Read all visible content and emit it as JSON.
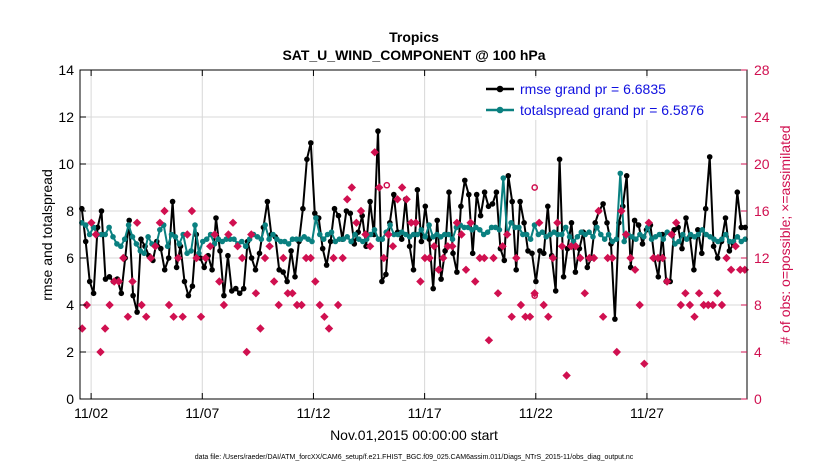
{
  "chart_data": {
    "type": "line",
    "title": "Tropics",
    "subtitle": "SAT_U_WIND_COMPONENT @ 100 hPa",
    "xlabel": "Nov.01,2015 00:00:00 start",
    "ylabel": "rmse and totalspread",
    "y2label": "# of obs: o=possible; ×=assimilated",
    "xlim": [
      0.5,
      30.5
    ],
    "ylim": [
      0,
      14
    ],
    "y2lim": [
      0,
      28
    ],
    "xticks": [
      1,
      6,
      11,
      16,
      21,
      26
    ],
    "xtick_labels": [
      "11/02",
      "11/07",
      "11/12",
      "11/17",
      "11/22",
      "11/27"
    ],
    "yticks": [
      0,
      2,
      4,
      6,
      8,
      10,
      12,
      14
    ],
    "ytick_labels": [
      "0",
      "2",
      "4",
      "6",
      "8",
      "10",
      "12",
      "14"
    ],
    "y2ticks": [
      0,
      4,
      8,
      12,
      16,
      20,
      24,
      28
    ],
    "y2tick_labels": [
      "0",
      "4",
      "8",
      "12",
      "16",
      "20",
      "24",
      "28"
    ],
    "series": [
      {
        "name": "rmse grand pr = 6.6835",
        "color": "#000000",
        "values": [
          8.1,
          6.7,
          5.0,
          4.5,
          7.3,
          8.0,
          5.1,
          5.2,
          5.0,
          5.1,
          4.5,
          6.0,
          7.6,
          4.4,
          3.7,
          6.8,
          6.5,
          6.1,
          5.9,
          6.7,
          6.4,
          5.5,
          6.0,
          8.4,
          5.6,
          6.5,
          5.0,
          4.4,
          4.8,
          7.0,
          6.0,
          5.6,
          6.1,
          5.5,
          7.7,
          6.3,
          4.4,
          6.1,
          4.6,
          4.7,
          4.5,
          4.7,
          6.7,
          6.0,
          5.5,
          6.2,
          7.3,
          8.4,
          7.0,
          6.9,
          5.5,
          5.4,
          5.0,
          6.3,
          5.2,
          6.7,
          8.1,
          10.2,
          10.9,
          7.9,
          7.7,
          6.4,
          5.7,
          6.7,
          8.1,
          7.8,
          6.8,
          8.0,
          7.9,
          6.6,
          7.1,
          7.8,
          6.5,
          8.4,
          7.0,
          11.4,
          5.0,
          5.3,
          7.5,
          8.7,
          7.1,
          6.8,
          8.5,
          6.5,
          5.5,
          8.9,
          6.7,
          8.2,
          6.8,
          4.7,
          7.6,
          5.1,
          6.3,
          8.8,
          6.2,
          5.4,
          8.2,
          9.3,
          8.7,
          6.2,
          8.7,
          7.8,
          8.8,
          8.2,
          8.3,
          8.8,
          6.4,
          5.9,
          9.5,
          8.4,
          5.5,
          8.4,
          7.5,
          6.3,
          6.2,
          5.0,
          6.3,
          6.2,
          8.2,
          6.1,
          4.6,
          10.2,
          5.2,
          6.4,
          7.5,
          5.4,
          6.4,
          7.1,
          5.6,
          6.0,
          7.5,
          8.0,
          8.3,
          7.5,
          6.6,
          3.4,
          7.5,
          8.2,
          9.5,
          5.6,
          7.6,
          7.4,
          6.6,
          7.2,
          7.4,
          6.0,
          5.2,
          7.0,
          5.0,
          5.0,
          7.2,
          7.3,
          6.4,
          7.7,
          6.9,
          5.5,
          7.2,
          6.2,
          8.1,
          10.3,
          6.5,
          6.0,
          6.7,
          7.7,
          6.3,
          6.6,
          8.8,
          7.3,
          7.3
        ]
      },
      {
        "name": "totalspread grand pr = 6.5876",
        "color": "#0a8080",
        "values": [
          7.5,
          7.4,
          7.0,
          7.3,
          7.0,
          7.0,
          7.0,
          7.3,
          6.9,
          6.6,
          6.5,
          6.8,
          7.4,
          6.9,
          6.6,
          6.3,
          6.2,
          6.9,
          6.6,
          6.5,
          7.2,
          7.4,
          6.5,
          7.0,
          6.9,
          6.6,
          7.0,
          6.2,
          6.3,
          7.4,
          6.2,
          6.7,
          6.8,
          7.0,
          6.6,
          6.8,
          6.7,
          6.8,
          6.8,
          6.8,
          6.6,
          6.7,
          6.5,
          6.8,
          7.0,
          6.9,
          6.8,
          7.4,
          6.8,
          7.0,
          6.8,
          6.7,
          6.7,
          6.6,
          6.8,
          6.8,
          6.8,
          6.9,
          6.8,
          6.7,
          7.7,
          7.0,
          6.8,
          7.0,
          7.1,
          6.7,
          6.8,
          6.8,
          6.9,
          6.7,
          7.0,
          6.8,
          6.7,
          6.8,
          7.0,
          7.2,
          6.8,
          6.8,
          7.1,
          7.4,
          7.0,
          7.0,
          7.1,
          7.0,
          6.9,
          7.0,
          7.0,
          7.2,
          6.9,
          7.4,
          6.9,
          7.0,
          6.9,
          7.0,
          7.0,
          6.8,
          7.3,
          7.4,
          7.3,
          7.3,
          7.2,
          7.3,
          7.2,
          7.0,
          7.1,
          7.3,
          7.3,
          7.2,
          9.4,
          7.0,
          7.5,
          7.3,
          7.3,
          7.0,
          7.0,
          6.8,
          7.4,
          7.0,
          7.1,
          6.9,
          7.0,
          7.1,
          7.0,
          7.0,
          7.3,
          6.9,
          6.7,
          6.9,
          7.1,
          7.0,
          7.1,
          6.9,
          7.3,
          7.0,
          6.8,
          7.0,
          6.7,
          6.8,
          9.6,
          6.7,
          7.0,
          6.9,
          6.8,
          7.0,
          6.9,
          7.3,
          6.8,
          6.9,
          7.0,
          6.8,
          7.1,
          7.0,
          6.6,
          6.7,
          7.0,
          6.8,
          7.0,
          6.9,
          7.0,
          7.2,
          7.0,
          6.9,
          6.8,
          6.7,
          6.8,
          7.0,
          6.7,
          6.7,
          6.9,
          6.7,
          6.8
        ]
      },
      {
        "name": "obs assimilated (×)",
        "color": "#d01050",
        "axis": "right",
        "values": [
          6,
          8,
          15,
          14,
          4,
          6,
          8,
          10,
          10,
          12,
          7,
          10,
          15,
          8,
          7,
          12,
          13,
          15,
          16,
          8,
          7,
          12,
          7,
          14,
          16,
          12,
          7,
          12,
          13,
          14,
          10,
          8,
          14,
          15,
          13,
          12,
          4,
          14,
          9,
          6,
          12,
          13,
          10,
          8,
          12,
          9,
          9,
          8,
          8,
          12,
          12,
          10,
          8,
          7,
          6,
          12,
          8,
          12,
          17,
          18,
          15,
          16,
          14,
          13,
          21,
          18,
          12,
          14,
          13,
          17,
          18,
          17,
          15,
          15,
          10,
          12,
          12,
          13,
          11,
          12,
          13,
          13,
          15,
          14,
          11,
          15,
          10,
          12,
          12,
          5,
          12,
          9,
          13,
          14,
          7,
          12,
          8,
          7,
          7,
          9,
          15,
          8,
          7,
          12,
          15,
          13,
          2,
          13,
          13,
          12,
          9,
          12,
          12,
          16,
          7,
          12,
          12,
          4,
          16,
          14,
          12,
          11,
          8,
          3,
          15,
          12,
          12,
          12,
          10,
          14,
          15,
          8,
          9,
          8,
          7,
          9,
          8,
          8,
          8,
          9,
          8,
          12,
          11,
          13,
          11,
          11
        ]
      },
      {
        "name": "obs possible (o)",
        "color": "#d01050",
        "axis": "right",
        "marker": "circle",
        "points": [
          [
            14.3,
            18.2
          ],
          [
            20.95,
            18.0
          ],
          [
            20.95,
            8.8
          ]
        ]
      }
    ],
    "legend": "top-right"
  },
  "footnote": "data file: /Users/raeder/DAI/ATM_forcXX/CAM6_setup/f.e21.FHIST_BGC.f09_025.CAM6assim.011/Diags_NTrS_2015-11/obs_diag_output.nc"
}
